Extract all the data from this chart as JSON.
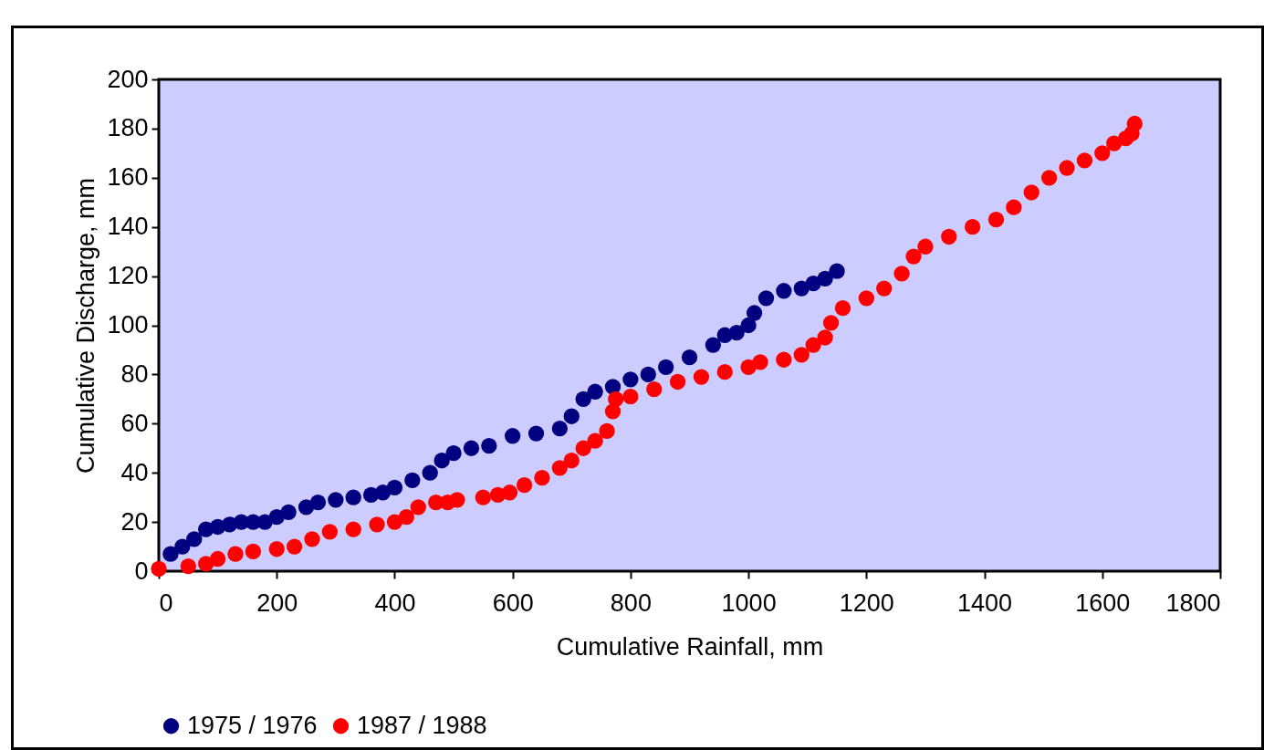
{
  "chart_data": {
    "type": "scatter",
    "xlabel": "Cumulative Rainfall, mm",
    "ylabel": "Cumulative Discharge, mm",
    "xlim": [
      0,
      1800
    ],
    "xticks": [
      0,
      200,
      400,
      600,
      800,
      1000,
      1200,
      1400,
      1600,
      1800
    ],
    "ylim": [
      0,
      200
    ],
    "yticks": [
      0,
      20,
      40,
      60,
      80,
      100,
      120,
      140,
      160,
      180,
      200
    ],
    "grid": false,
    "legend": "bottom",
    "marker": "circle",
    "series": [
      {
        "name": "1975 / 1976",
        "color": "#000080",
        "x": [
          20,
          40,
          60,
          80,
          100,
          120,
          140,
          160,
          180,
          200,
          220,
          250,
          270,
          300,
          330,
          360,
          380,
          400,
          430,
          460,
          480,
          500,
          530,
          560,
          600,
          640,
          680,
          700,
          720,
          740,
          770,
          800,
          830,
          860,
          900,
          940,
          960,
          980,
          1000,
          1010,
          1030,
          1060,
          1090,
          1110,
          1130,
          1150
        ],
        "values": [
          7,
          10,
          13,
          17,
          18,
          19,
          20,
          20,
          20,
          22,
          24,
          26,
          28,
          29,
          30,
          31,
          32,
          34,
          37,
          40,
          45,
          48,
          50,
          51,
          55,
          56,
          58,
          63,
          70,
          73,
          75,
          78,
          80,
          83,
          87,
          92,
          96,
          97,
          100,
          105,
          111,
          114,
          115,
          117,
          119,
          122
        ]
      },
      {
        "name": "1987 / 1988",
        "color": "#ff0000",
        "x": [
          0,
          50,
          80,
          100,
          130,
          160,
          200,
          230,
          260,
          290,
          330,
          370,
          400,
          420,
          440,
          470,
          490,
          506,
          550,
          575,
          595,
          620,
          650,
          680,
          700,
          720,
          740,
          760,
          770,
          775,
          800,
          840,
          880,
          920,
          960,
          1000,
          1020,
          1060,
          1090,
          1110,
          1130,
          1140,
          1160,
          1200,
          1230,
          1260,
          1280,
          1300,
          1340,
          1380,
          1420,
          1450,
          1480,
          1510,
          1540,
          1570,
          1600,
          1620,
          1640,
          1650,
          1655
        ],
        "values": [
          1,
          2,
          3,
          5,
          7,
          8,
          9,
          10,
          13,
          16,
          17,
          19,
          20,
          22,
          26,
          28,
          28,
          29,
          30,
          31,
          32,
          35,
          38,
          42,
          45,
          50,
          53,
          57,
          65,
          70,
          71,
          74,
          77,
          79,
          81,
          83,
          85,
          86,
          88,
          92,
          95,
          101,
          107,
          111,
          115,
          121,
          128,
          132,
          136,
          140,
          143,
          148,
          154,
          160,
          164,
          167,
          170,
          174,
          176,
          178,
          182
        ]
      }
    ]
  }
}
